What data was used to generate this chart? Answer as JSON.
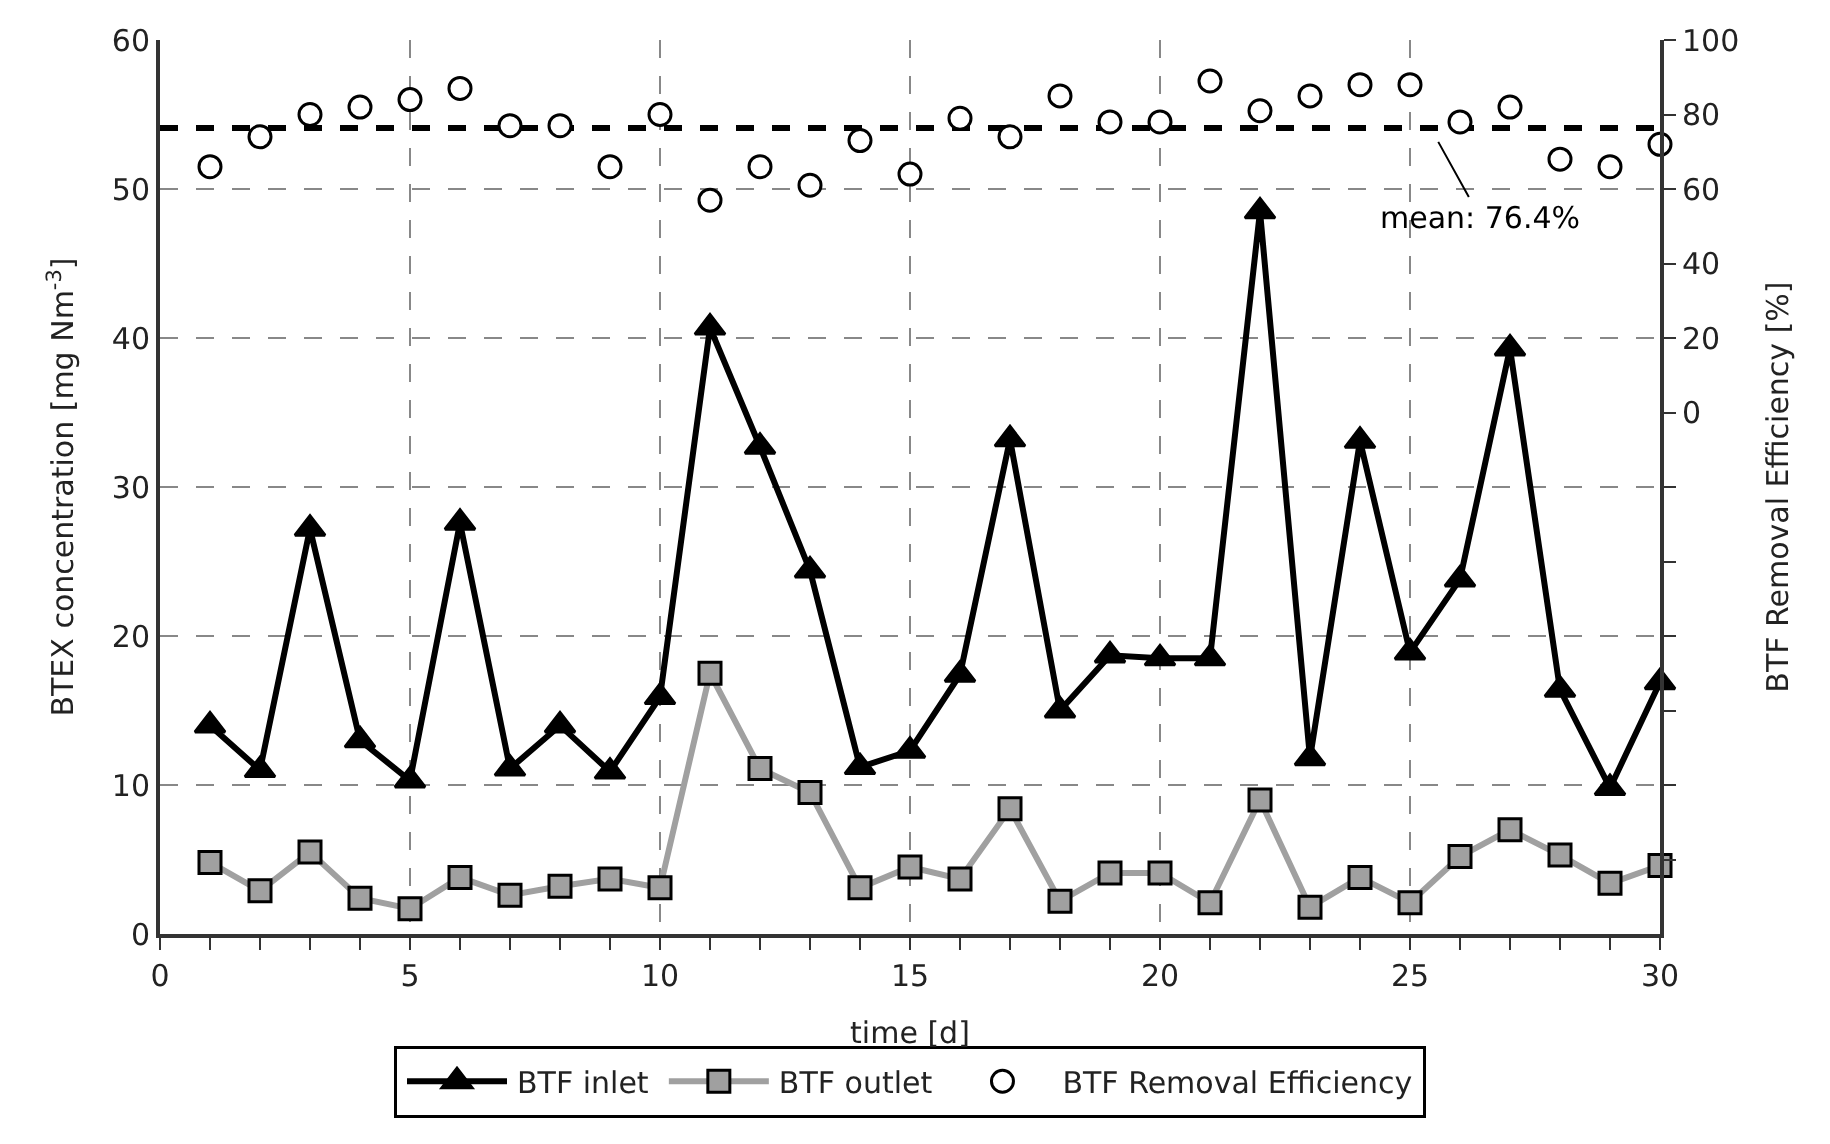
{
  "chart_data": {
    "type": "line",
    "xlabel": "time [d]",
    "ylabel": "BTEX concentration [mg Nm$^{-3}$]",
    "y2label": "BTF Removal Efficiency [%]",
    "x": [
      1,
      2,
      3,
      4,
      5,
      6,
      7,
      8,
      9,
      10,
      11,
      12,
      13,
      14,
      15,
      16,
      17,
      18,
      19,
      20,
      21,
      22,
      23,
      24,
      25,
      26,
      27,
      28,
      29,
      30
    ],
    "series": [
      {
        "name": "BTF inlet",
        "color": "#000000",
        "marker": "triangle",
        "values": [
          14,
          11,
          27.2,
          13,
          10.3,
          27.6,
          11.1,
          14,
          10.9,
          15.9,
          40.7,
          32.7,
          24.4,
          11.2,
          12.3,
          17.4,
          33.2,
          15,
          18.7,
          18.5,
          18.5,
          48.5,
          11.8,
          33.1,
          18.9,
          23.8,
          39.3,
          16.4,
          9.8,
          16.9
        ]
      },
      {
        "name": "BTF outlet",
        "color": "#a0a0a0",
        "marker": "square",
        "values": [
          4.8,
          2.9,
          5.5,
          2.4,
          1.7,
          3.8,
          2.6,
          3.2,
          3.7,
          3.1,
          17.5,
          11.1,
          9.5,
          3.1,
          4.5,
          3.7,
          8.4,
          2.2,
          4.1,
          4.1,
          2.1,
          9.0,
          1.8,
          3.8,
          2.1,
          5.2,
          7.0,
          5.3,
          3.4,
          4.6
        ]
      },
      {
        "name": "BTF Removal Efficiency",
        "type": "scatter",
        "axis": "y2",
        "color": "#ffffff",
        "marker": "circle",
        "values": [
          66,
          74,
          80,
          82,
          84,
          87,
          77,
          77,
          66,
          80,
          57,
          66,
          61,
          73,
          64,
          79,
          74,
          85,
          78,
          78,
          89,
          81,
          85,
          88,
          88,
          78,
          82,
          68,
          66,
          72
        ]
      }
    ],
    "xlim": [
      0,
      30
    ],
    "xticks": [
      0,
      5,
      10,
      15,
      20,
      25,
      30,
      {
        "value": 1,
        "label": null
      },
      {
        "value": 2,
        "label": null
      },
      {
        "value": 3,
        "label": null
      },
      {
        "value": 4,
        "label": null
      },
      {
        "value": 6,
        "label": null
      },
      {
        "value": 7,
        "label": null
      },
      {
        "value": 8,
        "label": null
      },
      {
        "value": 9,
        "label": null
      },
      {
        "value": 11,
        "label": null
      },
      {
        "value": 12,
        "label": null
      },
      {
        "value": 13,
        "label": null
      },
      {
        "value": 14,
        "label": null
      },
      {
        "value": 16,
        "label": null
      },
      {
        "value": 17,
        "label": null
      },
      {
        "value": 18,
        "label": null
      },
      {
        "value": 19,
        "label": null
      },
      {
        "value": 21,
        "label": null
      },
      {
        "value": 22,
        "label": null
      },
      {
        "value": 23,
        "label": null
      },
      {
        "value": 24,
        "label": null
      },
      {
        "value": 26,
        "label": null
      },
      {
        "value": 27,
        "label": null
      },
      {
        "value": 28,
        "label": null
      },
      {
        "value": 29,
        "label": null
      }
    ],
    "ylim": [
      0,
      60
    ],
    "yticks": [
      0,
      10,
      20,
      30,
      40,
      50,
      60
    ],
    "y2lim": [
      -140,
      100
    ],
    "y2ticks": [
      0,
      20,
      40,
      60,
      80,
      100,
      {
        "value": -20,
        "label": null
      },
      {
        "value": -40,
        "label": null
      },
      {
        "value": -60,
        "label": null
      },
      {
        "value": -80,
        "label": null
      },
      {
        "value": -100,
        "label": null
      },
      {
        "value": -120,
        "label": null
      }
    ],
    "ref_lines": [
      {
        "axis": "y2",
        "value": 76.4,
        "label": "mean: 76.4%",
        "color": "#000000",
        "line_style": "dashed"
      }
    ],
    "grid": true,
    "legend": "bottom"
  }
}
